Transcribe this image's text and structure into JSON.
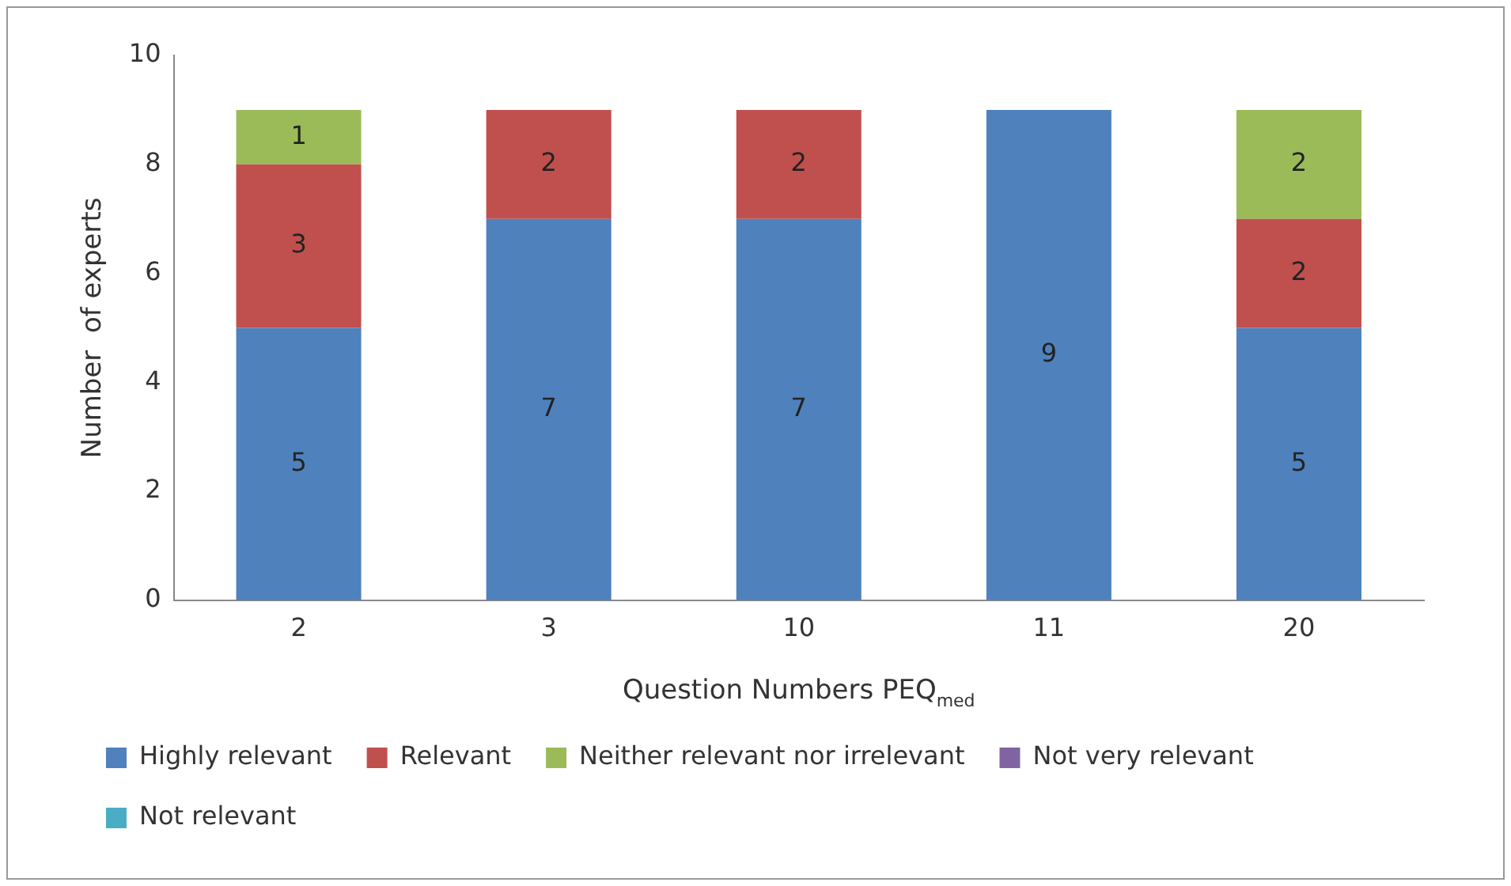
{
  "chart_data": {
    "type": "bar",
    "stacked": true,
    "categories": [
      "2",
      "3",
      "10",
      "11",
      "20"
    ],
    "xlabel": "Question Numbers PEQ$_{med}$",
    "ylabel": "Number  of experts",
    "ylim": [
      0,
      10
    ],
    "yticks": [
      0,
      2,
      4,
      6,
      8,
      10
    ],
    "grid": false,
    "legend": "bottom",
    "data_labels": true,
    "series": [
      {
        "name": "Highly relevant",
        "color": "#4f81bd",
        "values": [
          5,
          7,
          7,
          9,
          5
        ]
      },
      {
        "name": "Relevant",
        "color": "#c0504d",
        "values": [
          3,
          2,
          2,
          null,
          2
        ]
      },
      {
        "name": "Neither relevant nor irrelevant",
        "color": "#9bbb59",
        "values": [
          1,
          null,
          null,
          null,
          2
        ]
      },
      {
        "name": "Not very relevant",
        "color": "#8064a2",
        "values": [
          null,
          null,
          null,
          null,
          null
        ]
      },
      {
        "name": "Not relevant",
        "color": "#4bacc6",
        "values": [
          null,
          null,
          null,
          null,
          null
        ]
      }
    ]
  }
}
